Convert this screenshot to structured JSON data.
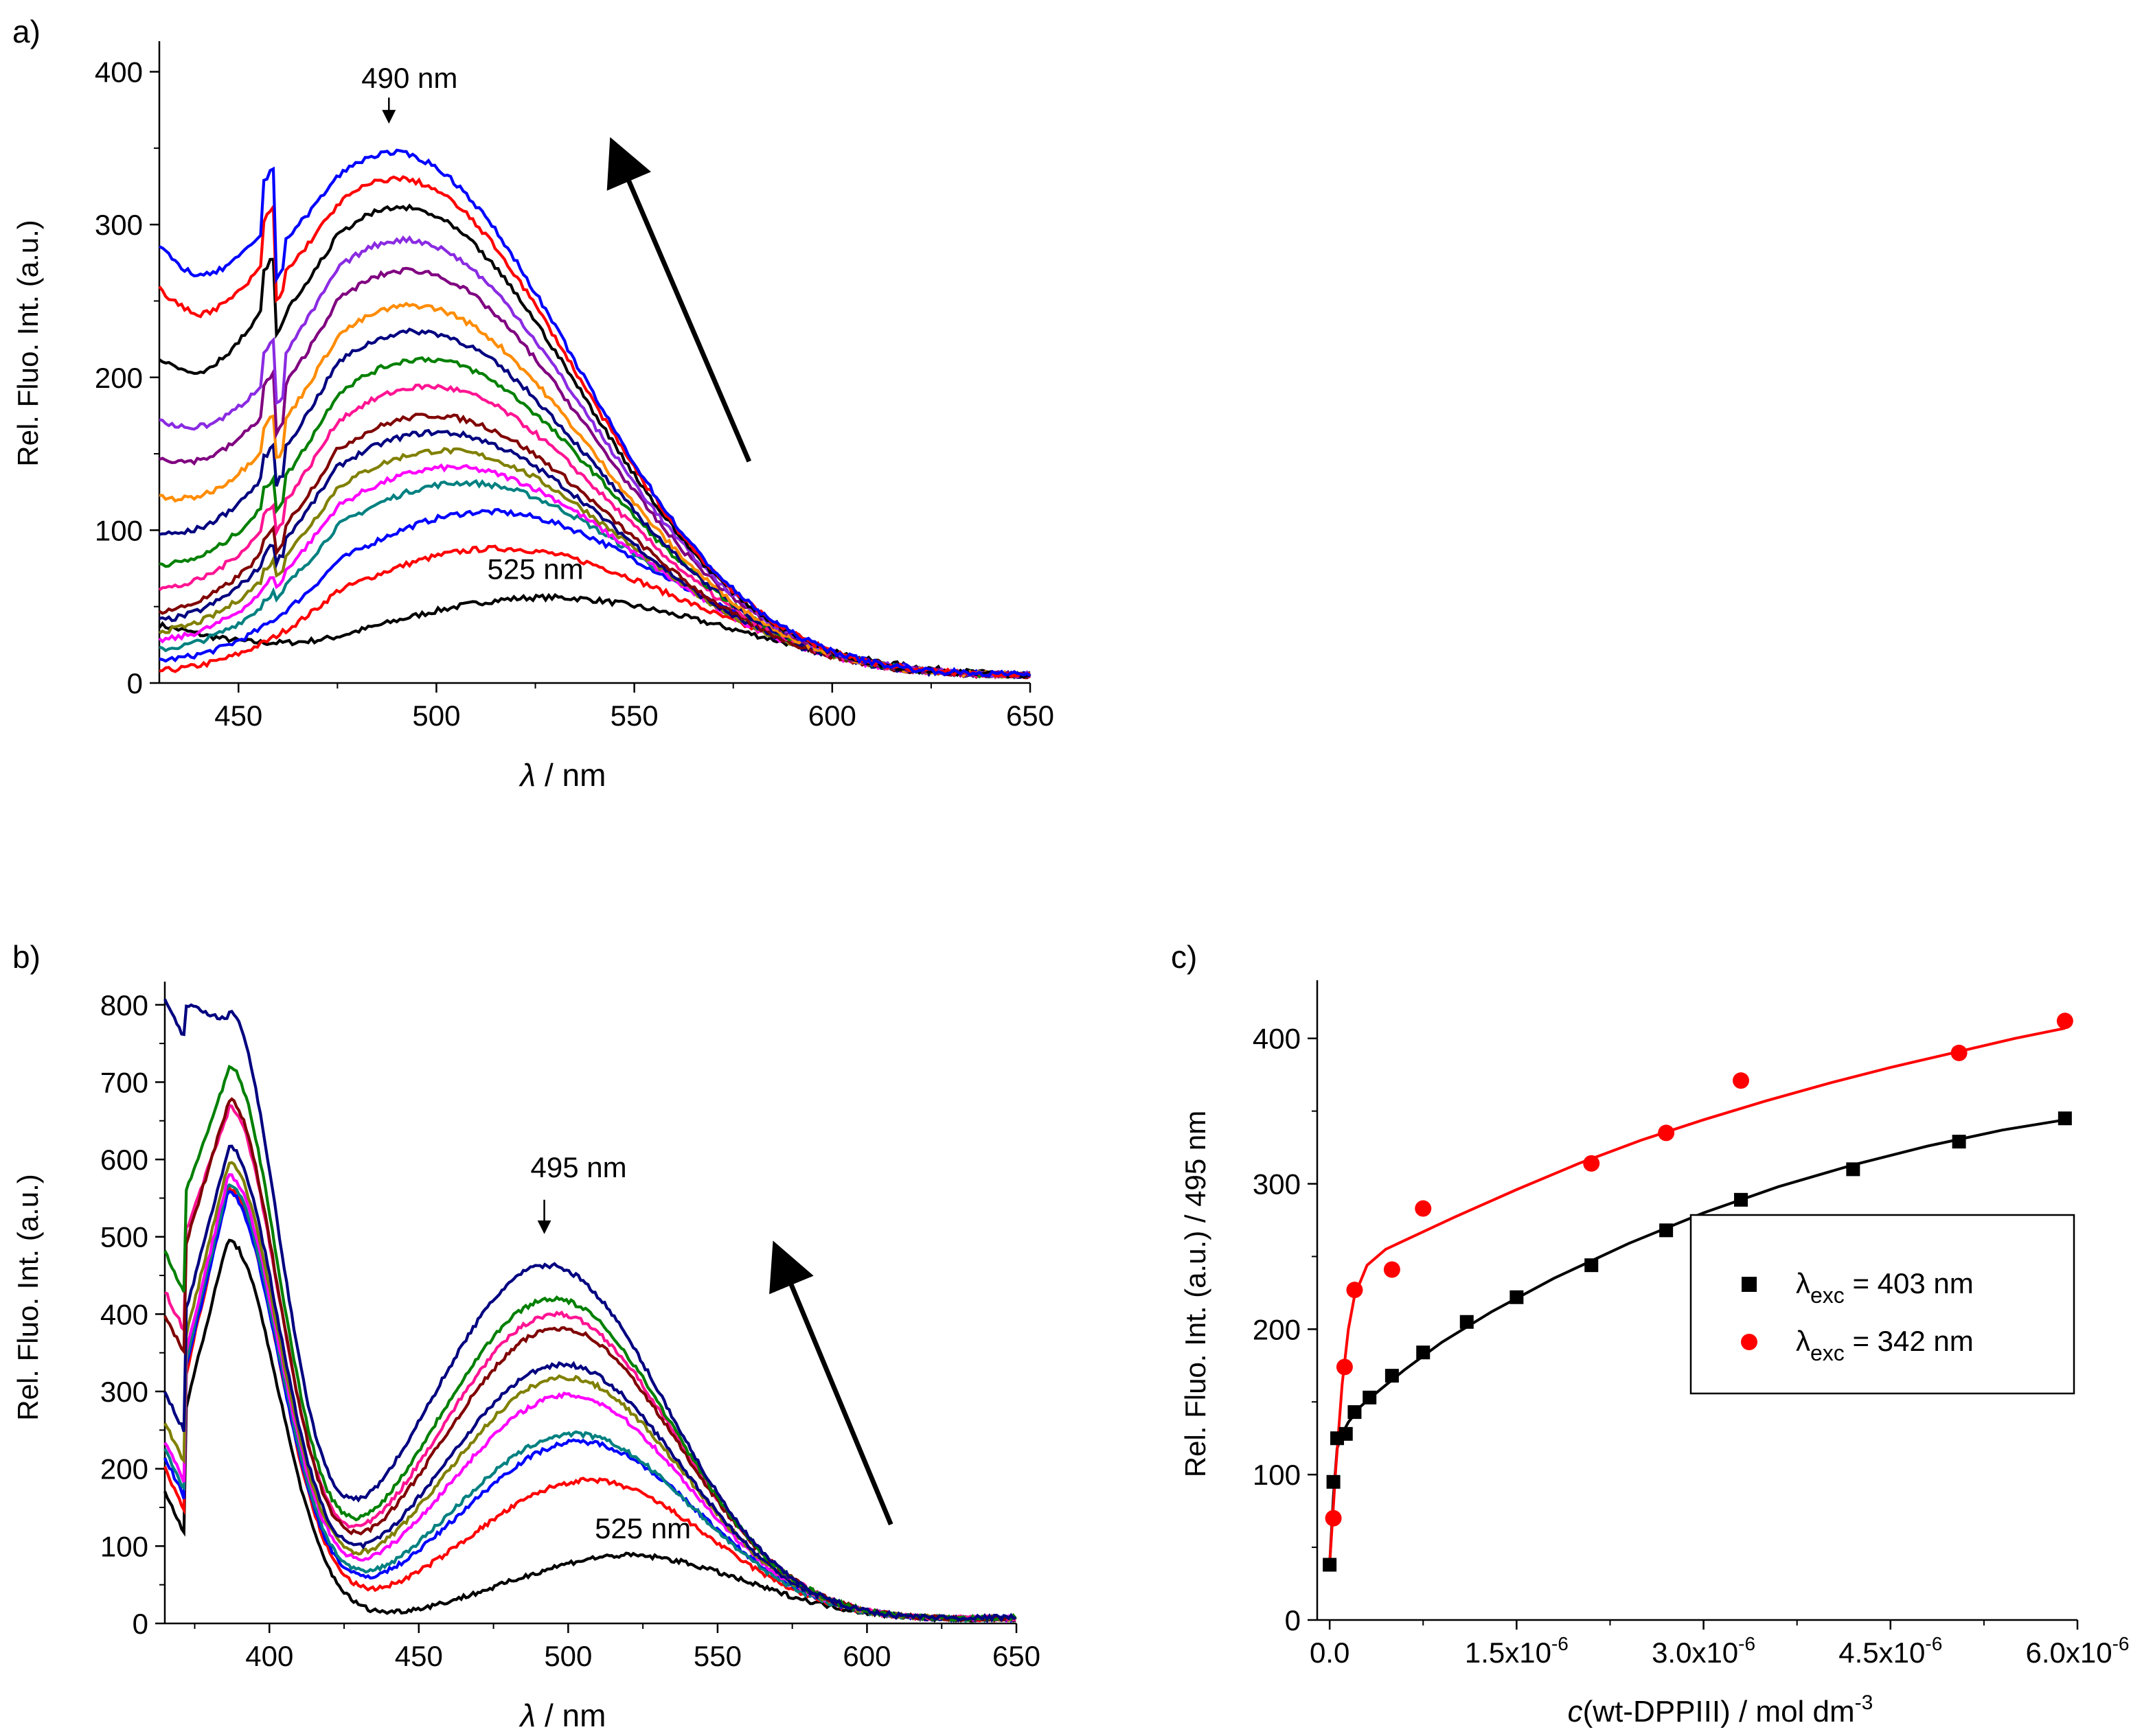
{
  "chart_data": [
    {
      "id": "a",
      "type": "line",
      "panel_label": "a)",
      "xlabel_symbol": "λ",
      "xlabel_unit": " / nm",
      "ylabel": "Rel. Fluo. Int. (a.u.)",
      "xlim": [
        430,
        650
      ],
      "ylim": [
        0,
        420
      ],
      "xticks": [
        450,
        500,
        550,
        600,
        650
      ],
      "yticks": [
        0,
        100,
        200,
        300,
        400
      ],
      "annotations": [
        {
          "text": "490 nm",
          "x": 488,
          "y": 375
        },
        {
          "text": "525 nm",
          "x": 525,
          "y": 68
        }
      ],
      "arrow": {
        "from": [
          579,
          145
        ],
        "to": [
          548,
          332
        ]
      },
      "series": [
        {
          "name": "c0",
          "color": "#000000",
          "start": 38,
          "peak": 56,
          "center": 528,
          "sigma": 48,
          "end": 10,
          "notch": 0
        },
        {
          "name": "c1",
          "color": "#ff0000",
          "start": 8,
          "peak": 88,
          "center": 516,
          "sigma": 47,
          "end": 12,
          "notch": 0
        },
        {
          "name": "c2",
          "color": "#0000ff",
          "start": 15,
          "peak": 112,
          "center": 513,
          "sigma": 46,
          "end": 13,
          "notch": 0
        },
        {
          "name": "c3",
          "color": "#008080",
          "start": 22,
          "peak": 131,
          "center": 507,
          "sigma": 46,
          "end": 13,
          "notch": 3
        },
        {
          "name": "c4",
          "color": "#ff00ff",
          "start": 28,
          "peak": 141,
          "center": 504,
          "sigma": 46,
          "end": 13,
          "notch": 4
        },
        {
          "name": "c5",
          "color": "#808000",
          "start": 34,
          "peak": 152,
          "center": 502,
          "sigma": 46,
          "end": 14,
          "notch": 5
        },
        {
          "name": "c6",
          "color": "#000080",
          "start": 41,
          "peak": 164,
          "center": 500,
          "sigma": 46,
          "end": 14,
          "notch": 6
        },
        {
          "name": "c7",
          "color": "#800000",
          "start": 47,
          "peak": 175,
          "center": 499,
          "sigma": 46,
          "end": 14,
          "notch": 7
        },
        {
          "name": "c8",
          "color": "#ff1493",
          "start": 62,
          "peak": 194,
          "center": 498,
          "sigma": 46,
          "end": 15,
          "notch": 9
        },
        {
          "name": "c9",
          "color": "#008000",
          "start": 78,
          "peak": 212,
          "center": 497,
          "sigma": 46,
          "end": 15,
          "notch": 10
        },
        {
          "name": "c10",
          "color": "#000080",
          "start": 98,
          "peak": 230,
          "center": 495,
          "sigma": 46,
          "end": 15,
          "notch": 12
        },
        {
          "name": "c11",
          "color": "#ff8c00",
          "start": 122,
          "peak": 247,
          "center": 494,
          "sigma": 46,
          "end": 15,
          "notch": 14
        },
        {
          "name": "c12",
          "color": "#800080",
          "start": 148,
          "peak": 270,
          "center": 493,
          "sigma": 46,
          "end": 16,
          "notch": 18
        },
        {
          "name": "c13",
          "color": "#8a2be2",
          "start": 172,
          "peak": 290,
          "center": 492,
          "sigma": 46,
          "end": 16,
          "notch": 20
        },
        {
          "name": "c14",
          "color": "#000000",
          "start": 213,
          "peak": 311,
          "center": 491,
          "sigma": 46,
          "end": 16,
          "notch": 24
        },
        {
          "name": "c15",
          "color": "#ff0000",
          "start": 258,
          "peak": 330,
          "center": 490,
          "sigma": 46,
          "end": 16,
          "notch": 28
        },
        {
          "name": "c16",
          "color": "#0000ff",
          "start": 286,
          "peak": 347,
          "center": 489,
          "sigma": 46,
          "end": 17,
          "notch": 32
        }
      ]
    },
    {
      "id": "b",
      "type": "line",
      "panel_label": "b)",
      "xlabel_symbol": "λ",
      "xlabel_unit": " / nm",
      "ylabel": "Rel. Fluo. Int. (a.u.)",
      "xlim": [
        365,
        650
      ],
      "ylim": [
        0,
        830
      ],
      "xticks": [
        400,
        450,
        500,
        550,
        600,
        650
      ],
      "yticks": [
        0,
        100,
        200,
        300,
        400,
        500,
        600,
        700,
        800
      ],
      "annotations": [
        {
          "text": "495 nm",
          "x": 492,
          "y": 555
        },
        {
          "text": "525 nm",
          "x": 525,
          "y": 110
        }
      ],
      "arrow": {
        "from": [
          608,
          128
        ],
        "to": [
          573,
          445
        ]
      },
      "series": [
        {
          "name": "c0",
          "color": "#000000",
          "start": 170,
          "p1": 495,
          "p2": 88,
          "c2": 520,
          "end": 12
        },
        {
          "name": "c1",
          "color": "#ff0000",
          "start": 200,
          "p1": 560,
          "p2": 185,
          "c2": 507,
          "end": 14
        },
        {
          "name": "c2",
          "color": "#0000ff",
          "start": 215,
          "p1": 555,
          "p2": 235,
          "c2": 504,
          "end": 15
        },
        {
          "name": "c3",
          "color": "#008080",
          "start": 225,
          "p1": 565,
          "p2": 245,
          "c2": 502,
          "end": 15
        },
        {
          "name": "c4",
          "color": "#ff00ff",
          "start": 235,
          "p1": 575,
          "p2": 295,
          "c2": 500,
          "end": 16
        },
        {
          "name": "c5",
          "color": "#808000",
          "start": 260,
          "p1": 590,
          "p2": 318,
          "c2": 499,
          "end": 16
        },
        {
          "name": "c6",
          "color": "#000080",
          "start": 300,
          "p1": 610,
          "p2": 335,
          "c2": 498,
          "end": 16
        },
        {
          "name": "c7",
          "color": "#ff1493",
          "start": 430,
          "p1": 660,
          "p2": 400,
          "c2": 496,
          "end": 17
        },
        {
          "name": "c8",
          "color": "#800000",
          "start": 400,
          "p1": 670,
          "p2": 382,
          "c2": 497,
          "end": 17
        },
        {
          "name": "c9",
          "color": "#008000",
          "start": 480,
          "p1": 710,
          "p2": 420,
          "c2": 495,
          "end": 18
        },
        {
          "name": "c10",
          "color": "#000080",
          "start": 810,
          "p1": 780,
          "p2": 463,
          "c2": 493,
          "end": 20
        }
      ]
    },
    {
      "id": "c",
      "type": "scatter",
      "panel_label": "c)",
      "xlabel_prefix": "c",
      "xlabel_main": "(wt-DPPIII) / mol dm",
      "xlabel_sup": "-3",
      "ylabel": "Rel. Fluo. Int. (a.u.) / 495 nm",
      "xlim": [
        -1e-07,
        6e-06
      ],
      "ylim": [
        0,
        440
      ],
      "xtick_labels": [
        "0.0",
        "1.5x10",
        "3.0x10",
        "4.5x10",
        "6.0x10"
      ],
      "xtick_exponents": [
        "",
        "-6",
        "-6",
        "-6",
        "-6"
      ],
      "xtick_values": [
        0,
        1.5e-06,
        3e-06,
        4.5e-06,
        6e-06
      ],
      "yticks": [
        0,
        100,
        200,
        300,
        400
      ],
      "legend_position": "middle-right",
      "series": [
        {
          "name": "λexc = 403 nm",
          "legend_symbol": "λ",
          "legend_sub": "exc",
          "legend_value": " = 403 nm",
          "marker": "square",
          "color": "#000000",
          "x": [
            0.0,
            3e-08,
            6e-08,
            1.3e-07,
            2e-07,
            3.2e-07,
            5e-07,
            7.5e-07,
            1.1e-06,
            1.5e-06,
            2.1e-06,
            2.7e-06,
            3.3e-06,
            4.2e-06,
            5.05e-06,
            5.9e-06
          ],
          "y": [
            38,
            95,
            125,
            128,
            143,
            153,
            168,
            184,
            205,
            222,
            244,
            268,
            289,
            310,
            329,
            345
          ],
          "fit_x": [
            0.0,
            3e-08,
            6e-08,
            1e-07,
            1.5e-07,
            2.5e-07,
            4e-07,
            6e-07,
            9e-07,
            1.3e-06,
            1.8e-06,
            2.4e-06,
            3e-06,
            3.6e-06,
            4.2e-06,
            4.8e-06,
            5.4e-06,
            5.9e-06
          ],
          "fit_y": [
            38,
            85,
            118,
            128,
            136,
            147,
            158,
            172,
            191,
            212,
            235,
            259,
            280,
            298,
            313,
            326,
            337,
            344
          ]
        },
        {
          "name": "λexc = 342 nm",
          "legend_symbol": "λ",
          "legend_sub": "exc",
          "legend_value": " = 342 nm",
          "marker": "circle",
          "color": "#ff0000",
          "x": [
            3e-08,
            1.2e-07,
            2e-07,
            5e-07,
            7.5e-07,
            2.1e-06,
            2.7e-06,
            3.3e-06,
            5.05e-06,
            5.9e-06
          ],
          "y": [
            70,
            174,
            227,
            241,
            283,
            314,
            335,
            371,
            390,
            412
          ],
          "fit_x": [
            0.0,
            5e-08,
            1e-07,
            1.5e-07,
            2e-07,
            3e-07,
            4.5e-07,
            7e-07,
            1e-06,
            1.5e-06,
            2e-06,
            2.5e-06,
            3e-06,
            3.5e-06,
            4e-06,
            4.5e-06,
            5e-06,
            5.5e-06,
            5.9e-06
          ],
          "fit_y": [
            38,
            105,
            162,
            200,
            223,
            244,
            255,
            265,
            277,
            296,
            314,
            330,
            344,
            357,
            369,
            380,
            390,
            400,
            407
          ]
        }
      ]
    }
  ]
}
